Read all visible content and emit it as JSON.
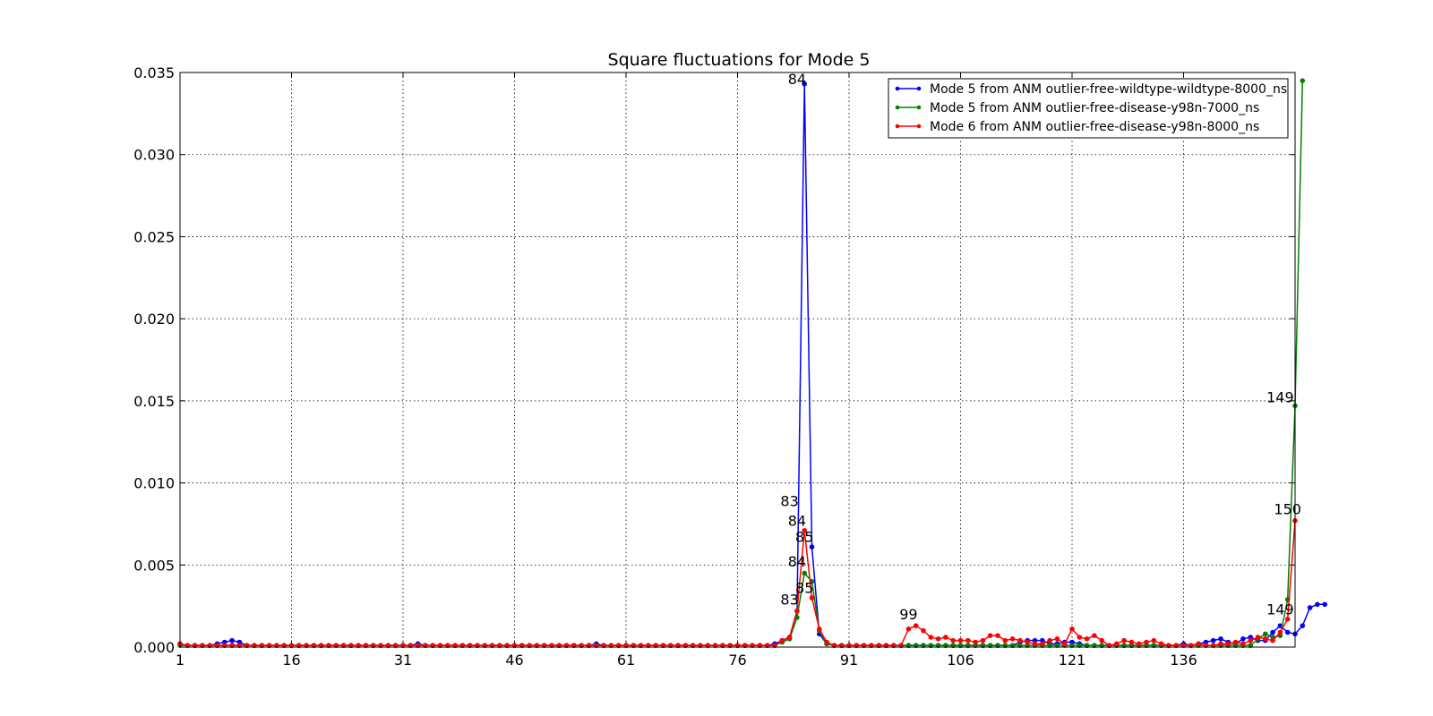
{
  "chart_data": {
    "type": "line",
    "title": "Square fluctuations for Mode 5",
    "xlabel": "",
    "ylabel": "",
    "xlim": [
      1,
      151
    ],
    "ylim": [
      0,
      0.035
    ],
    "xticks": [
      "1",
      "16",
      "31",
      "46",
      "61",
      "76",
      "91",
      "106",
      "121",
      "136"
    ],
    "yticks": [
      "0.000",
      "0.005",
      "0.010",
      "0.015",
      "0.020",
      "0.025",
      "0.030",
      "0.035"
    ],
    "grid": true,
    "legend_position": "top-right",
    "series": [
      {
        "name": "Mode 5 from ANM outlier-free-wildtype-wildtype-8000_ns",
        "color": "#0000ff",
        "values": [
          0.0002,
          0.0001,
          0.0001,
          0.0001,
          0.0001,
          0.0002,
          0.0003,
          0.0004,
          0.0003,
          0.0001,
          0.0001,
          0.0001,
          0.0001,
          0.0001,
          0.0001,
          0.0001,
          0.0001,
          0.0001,
          0.0001,
          0.0001,
          0.0001,
          0.0001,
          0.0001,
          0.0001,
          0.0001,
          0.0001,
          0.0001,
          0.0001,
          0.0001,
          0.0001,
          0.0001,
          0.0001,
          0.0002,
          0.0001,
          0.0001,
          0.0001,
          0.0001,
          0.0001,
          0.0001,
          0.0001,
          0.0001,
          0.0001,
          0.0001,
          0.0001,
          0.0001,
          0.0001,
          0.0001,
          0.0001,
          0.0001,
          0.0001,
          0.0001,
          0.0001,
          0.0001,
          0.0001,
          0.0001,
          0.0001,
          0.0002,
          0.0001,
          0.0001,
          0.0001,
          0.0001,
          0.0001,
          0.0001,
          0.0001,
          0.0001,
          0.0001,
          0.0001,
          0.0001,
          0.0001,
          0.0001,
          0.0001,
          0.0001,
          0.0001,
          0.0001,
          0.0001,
          0.0001,
          0.0001,
          0.0001,
          0.0001,
          0.0001,
          0.0002,
          0.0004,
          0.0006,
          0.0022,
          0.0343,
          0.0061,
          0.0008,
          0.0002,
          0.0001,
          0.0001,
          0.0001,
          0.0001,
          0.0001,
          0.0001,
          0.0001,
          0.0001,
          0.0001,
          0.0001,
          0.0001,
          0.0001,
          0.0001,
          0.0001,
          0.0001,
          0.0001,
          0.0001,
          0.0001,
          0.0001,
          0.0001,
          0.0001,
          0.0001,
          0.0001,
          0.0001,
          0.0001,
          0.0003,
          0.0004,
          0.0004,
          0.0004,
          0.0002,
          0.0002,
          0.0003,
          0.0003,
          0.0002,
          0.0001,
          0.0001,
          0.0001,
          0.0001,
          0.0001,
          0.0001,
          0.0001,
          0.0001,
          0.0001,
          0.0001,
          0.0001,
          0.0001,
          0.0001,
          0.0002,
          0.0001,
          0.0002,
          0.0003,
          0.0004,
          0.0005,
          0.0003,
          0.0002,
          0.0005,
          0.0006,
          0.0004,
          0.0004,
          0.0009,
          0.0013,
          0.0009,
          0.0008,
          0.0013,
          0.0024,
          0.0026,
          0.0026
        ]
      },
      {
        "name": "Mode 5 from ANM outlier-free-disease-y98n-7000_ns",
        "color": "#008000",
        "values": [
          0.0001,
          0.0001,
          0.0001,
          0.0001,
          0.0001,
          0.0001,
          0.0001,
          0.0001,
          0.0001,
          0.0001,
          0.0001,
          0.0001,
          0.0001,
          0.0001,
          0.0001,
          0.0001,
          0.0001,
          0.0001,
          0.0001,
          0.0001,
          0.0001,
          0.0001,
          0.0001,
          0.0001,
          0.0001,
          0.0001,
          0.0001,
          0.0001,
          0.0001,
          0.0001,
          0.0001,
          0.0001,
          0.0001,
          0.0001,
          0.0001,
          0.0001,
          0.0001,
          0.0001,
          0.0001,
          0.0001,
          0.0001,
          0.0001,
          0.0001,
          0.0001,
          0.0001,
          0.0001,
          0.0001,
          0.0001,
          0.0001,
          0.0001,
          0.0001,
          0.0001,
          0.0001,
          0.0001,
          0.0001,
          0.0001,
          0.0001,
          0.0001,
          0.0001,
          0.0001,
          0.0001,
          0.0001,
          0.0001,
          0.0001,
          0.0001,
          0.0001,
          0.0001,
          0.0001,
          0.0001,
          0.0001,
          0.0001,
          0.0001,
          0.0001,
          0.0001,
          0.0001,
          0.0001,
          0.0001,
          0.0001,
          0.0001,
          0.0001,
          0.0001,
          0.0003,
          0.0005,
          0.0018,
          0.0045,
          0.004,
          0.001,
          0.0002,
          0.0001,
          0.0001,
          0.0001,
          0.0001,
          0.0001,
          0.0001,
          0.0001,
          0.0001,
          0.0001,
          0.0001,
          0.0001,
          0.0001,
          0.0001,
          0.0001,
          0.0001,
          0.0001,
          0.0001,
          0.0001,
          0.0001,
          0.0001,
          0.0001,
          0.0001,
          0.0001,
          0.0001,
          0.0001,
          0.0001,
          0.0001,
          0.0001,
          0.0001,
          0.0001,
          0.0001,
          0.0001,
          0.0001,
          0.0001,
          0.0001,
          0.0001,
          0.0001,
          0.0001,
          0.0001,
          0.0001,
          0.0001,
          0.0001,
          0.0001,
          0.0001,
          0.0001,
          0.0001,
          0.0001,
          0.0001,
          0.0001,
          0.0001,
          0.0001,
          0.0001,
          0.0001,
          0.0001,
          0.0001,
          0.0001,
          0.0001,
          0.0005,
          0.0008,
          0.0006,
          0.0007,
          0.0029,
          0.0147,
          0.0345
        ]
      },
      {
        "name": "Mode 6 from ANM outlier-free-disease-y98n-8000_ns",
        "color": "#ff0000",
        "values": [
          0.0002,
          0.0001,
          0.0001,
          0.0001,
          0.0001,
          0.0001,
          0.0001,
          0.0001,
          0.0001,
          0.0001,
          0.0001,
          0.0001,
          0.0001,
          0.0001,
          0.0001,
          0.0001,
          0.0001,
          0.0001,
          0.0001,
          0.0001,
          0.0001,
          0.0001,
          0.0001,
          0.0001,
          0.0001,
          0.0001,
          0.0001,
          0.0001,
          0.0001,
          0.0001,
          0.0001,
          0.0001,
          0.0001,
          0.0001,
          0.0001,
          0.0001,
          0.0001,
          0.0001,
          0.0001,
          0.0001,
          0.0001,
          0.0001,
          0.0001,
          0.0001,
          0.0001,
          0.0001,
          0.0001,
          0.0001,
          0.0001,
          0.0001,
          0.0001,
          0.0001,
          0.0001,
          0.0001,
          0.0001,
          0.0001,
          0.0001,
          0.0001,
          0.0001,
          0.0001,
          0.0001,
          0.0001,
          0.0001,
          0.0001,
          0.0001,
          0.0001,
          0.0001,
          0.0001,
          0.0001,
          0.0001,
          0.0001,
          0.0001,
          0.0001,
          0.0001,
          0.0001,
          0.0001,
          0.0001,
          0.0001,
          0.0001,
          0.0001,
          0.0001,
          0.0004,
          0.0006,
          0.0022,
          0.0071,
          0.003,
          0.0011,
          0.0003,
          0.0001,
          0.0001,
          0.0001,
          0.0001,
          0.0001,
          0.0001,
          0.0001,
          0.0001,
          0.0001,
          0.0001,
          0.0011,
          0.0013,
          0.001,
          0.0006,
          0.0005,
          0.0006,
          0.0004,
          0.0004,
          0.0004,
          0.0003,
          0.0004,
          0.0007,
          0.0007,
          0.0004,
          0.0005,
          0.0004,
          0.0003,
          0.0002,
          0.0002,
          0.0004,
          0.0005,
          0.0002,
          0.0011,
          0.0006,
          0.0005,
          0.0007,
          0.0004,
          0.0001,
          0.0002,
          0.0004,
          0.0003,
          0.0002,
          0.0003,
          0.0004,
          0.0002,
          0.0001,
          0.0001,
          0.0001,
          0.0001,
          0.0002,
          0.0001,
          0.0001,
          0.0002,
          0.0002,
          0.0003,
          0.0002,
          0.0004,
          0.0006,
          0.0005,
          0.0004,
          0.0009,
          0.0017,
          0.0077
        ]
      }
    ],
    "annotations": [
      {
        "text": "84",
        "x": 84,
        "y": 0.0343
      },
      {
        "text": "83",
        "x": 83,
        "y": 0.0086
      },
      {
        "text": "84",
        "x": 84,
        "y": 0.0074
      },
      {
        "text": "85",
        "x": 85,
        "y": 0.0064
      },
      {
        "text": "84",
        "x": 84,
        "y": 0.0049
      },
      {
        "text": "85",
        "x": 85,
        "y": 0.0033
      },
      {
        "text": "83",
        "x": 83,
        "y": 0.0026
      },
      {
        "text": "99",
        "x": 99,
        "y": 0.0017
      },
      {
        "text": "149",
        "x": 149,
        "y": 0.0149
      },
      {
        "text": "150",
        "x": 150,
        "y": 0.0081
      },
      {
        "text": "149",
        "x": 149,
        "y": 0.002
      }
    ]
  }
}
